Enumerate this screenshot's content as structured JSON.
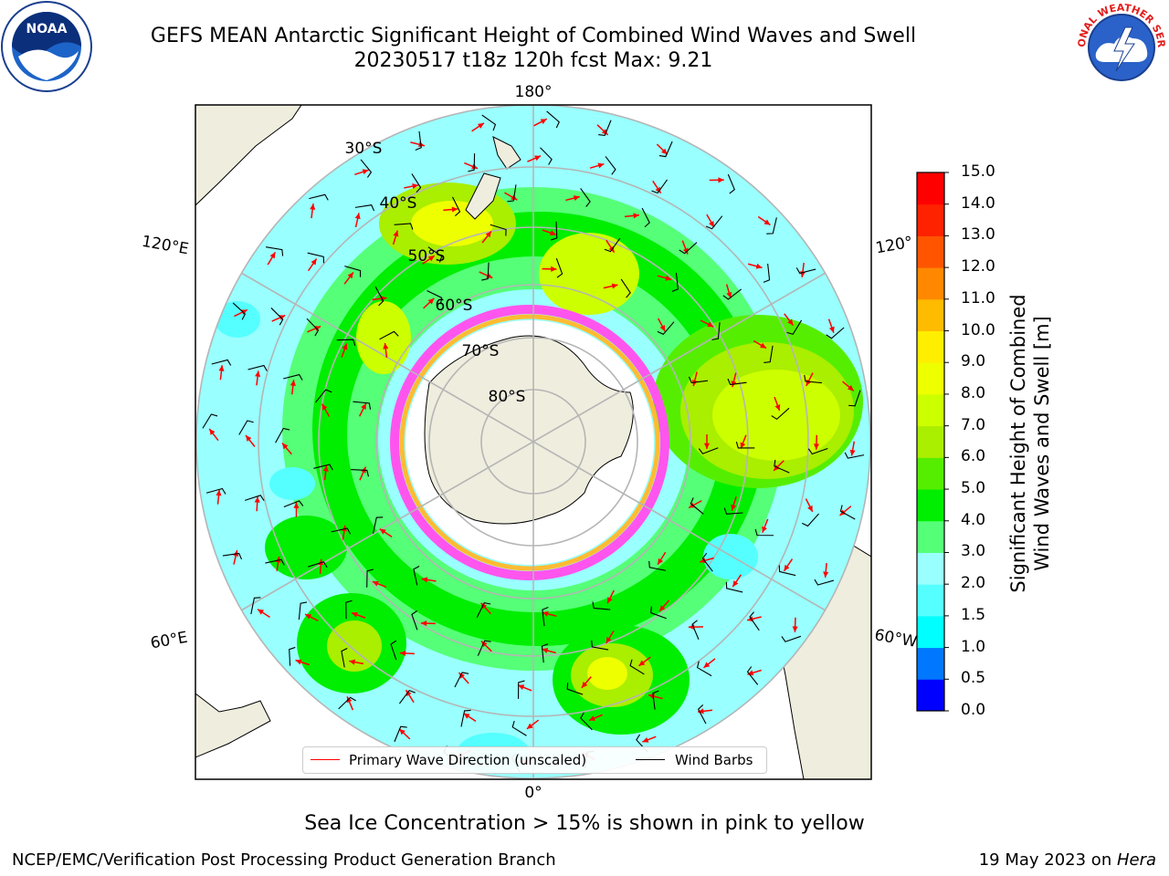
{
  "header": {
    "title": "GEFS MEAN Antarctic Significant Height of Combined Wind Waves and Swell",
    "subtitle": "20230517 t18z 120h fcst   Max: 9.21"
  },
  "logos": {
    "left": "NOAA",
    "right": "NATIONAL WEATHER SERVICE"
  },
  "map": {
    "longitude_labels": [
      "180°",
      "120°E",
      "120°",
      "60°E",
      "60°W",
      "0°"
    ],
    "latitude_labels": [
      "30°S",
      "40°S",
      "50°S",
      "60°S",
      "70°S",
      "80°S"
    ]
  },
  "legend": {
    "wave_label": "Primary Wave Direction (unscaled)",
    "wind_label": "Wind Barbs",
    "wave_color": "#ff0000",
    "wind_color": "#000000"
  },
  "colorbar": {
    "title_line1": "Significant Height of Combined",
    "title_line2": "Wind Waves and Swell [m]",
    "levels": [
      "0.0",
      "0.5",
      "1.0",
      "1.5",
      "2.0",
      "3.0",
      "4.0",
      "5.0",
      "6.0",
      "7.0",
      "8.0",
      "9.0",
      "10.0",
      "11.0",
      "12.0",
      "13.0",
      "14.0",
      "15.0"
    ],
    "colors": [
      "#0000ff",
      "#0077ff",
      "#00ffff",
      "#55ffff",
      "#99ffff",
      "#55ff77",
      "#00ee00",
      "#55ee00",
      "#aaee00",
      "#ccff00",
      "#eeff00",
      "#ffee00",
      "#ffbb00",
      "#ff8800",
      "#ff5500",
      "#ff2200",
      "#ff0000"
    ]
  },
  "footer": {
    "note": "Sea Ice Concentration > 15% is shown in pink to yellow",
    "left": "NCEP/EMC/Verification Post Processing Product Generation Branch",
    "right_date": "19 May 2023 on ",
    "right_host": "Hera"
  }
}
